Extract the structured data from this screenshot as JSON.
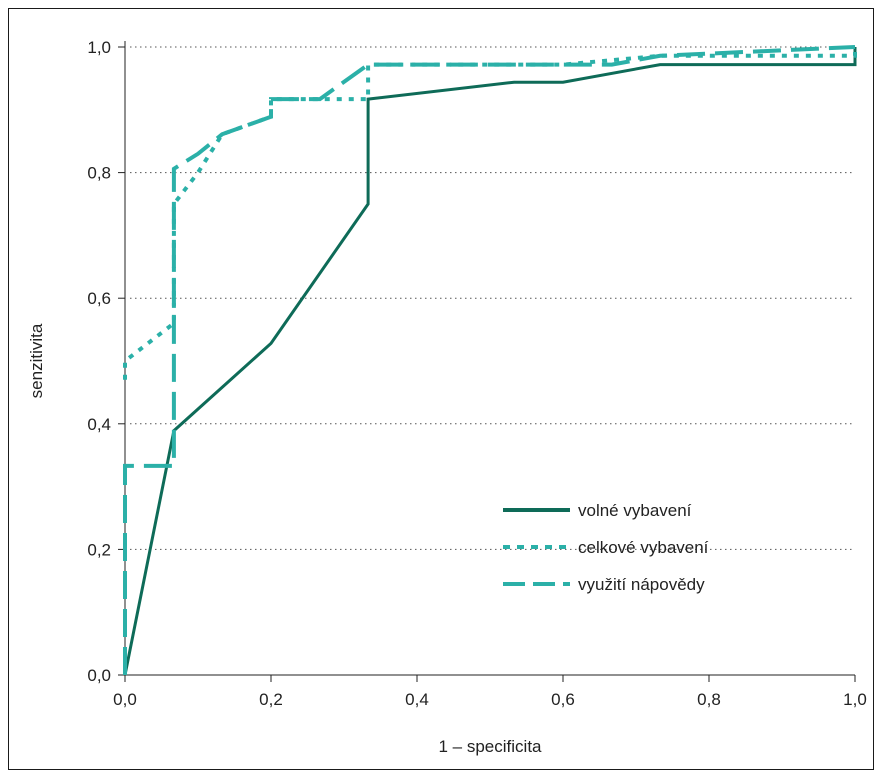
{
  "chart_data": {
    "type": "line",
    "xlabel": "1 – specificita",
    "ylabel": "senzitivita",
    "xlim": [
      0,
      1
    ],
    "ylim": [
      0,
      1
    ],
    "x_ticks": [
      "0,0",
      "0,2",
      "0,4",
      "0,6",
      "0,8",
      "1,0"
    ],
    "y_ticks": [
      "0,0",
      "0,2",
      "0,4",
      "0,6",
      "0,8",
      "1,0"
    ],
    "grid": "horizontal dotted",
    "legend_position": "right",
    "series": [
      {
        "name": "volné vybavení",
        "style": "solid",
        "color": "#0e6b58",
        "points": [
          [
            0,
            0
          ],
          [
            0.067,
            0.389
          ],
          [
            0.2,
            0.528
          ],
          [
            0.333,
            0.75
          ],
          [
            0.333,
            0.917
          ],
          [
            0.533,
            0.944
          ],
          [
            0.6,
            0.944
          ],
          [
            0.733,
            0.972
          ],
          [
            1.0,
            0.972
          ],
          [
            1.0,
            1.0
          ]
        ]
      },
      {
        "name": "celkové vybavení",
        "style": "dotted",
        "color": "#2bb0a8",
        "points": [
          [
            0,
            0.47
          ],
          [
            0,
            0.5
          ],
          [
            0.067,
            0.56
          ],
          [
            0.067,
            0.75
          ],
          [
            0.1,
            0.8
          ],
          [
            0.133,
            0.861
          ],
          [
            0.2,
            0.889
          ],
          [
            0.2,
            0.917
          ],
          [
            0.333,
            0.917
          ],
          [
            0.333,
            0.972
          ],
          [
            0.6,
            0.972
          ],
          [
            0.733,
            0.986
          ],
          [
            1.0,
            0.986
          ],
          [
            1.0,
            1.0
          ]
        ]
      },
      {
        "name": "využití nápovědy",
        "style": "dashed",
        "color": "#2bb0a8",
        "points": [
          [
            0,
            0
          ],
          [
            0,
            0.333
          ],
          [
            0.067,
            0.333
          ],
          [
            0.067,
            0.806
          ],
          [
            0.1,
            0.83
          ],
          [
            0.133,
            0.861
          ],
          [
            0.2,
            0.889
          ],
          [
            0.2,
            0.917
          ],
          [
            0.267,
            0.917
          ],
          [
            0.333,
            0.972
          ],
          [
            0.667,
            0.972
          ],
          [
            0.733,
            0.986
          ],
          [
            1.0,
            1.0
          ]
        ]
      }
    ]
  }
}
